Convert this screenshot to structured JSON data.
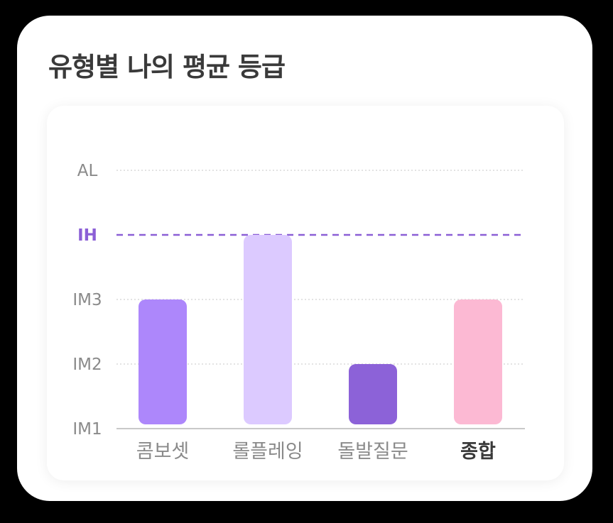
{
  "title": "유형별 나의 평균 등급",
  "chart_data": {
    "type": "bar",
    "y_levels": [
      "IM1",
      "IM2",
      "IM3",
      "IH",
      "AL"
    ],
    "target_level": "IH",
    "categories": [
      "콤보셋",
      "롤플레잉",
      "돌발질문",
      "종합"
    ],
    "values": [
      "IM3",
      "IH",
      "IM2",
      "IM3"
    ],
    "highlight_category": "종합",
    "bar_colors": [
      "#ad87fb",
      "#dccaff",
      "#8c62d8",
      "#fcb9d3"
    ],
    "target_color": "#8b5fd6",
    "grid": true
  }
}
